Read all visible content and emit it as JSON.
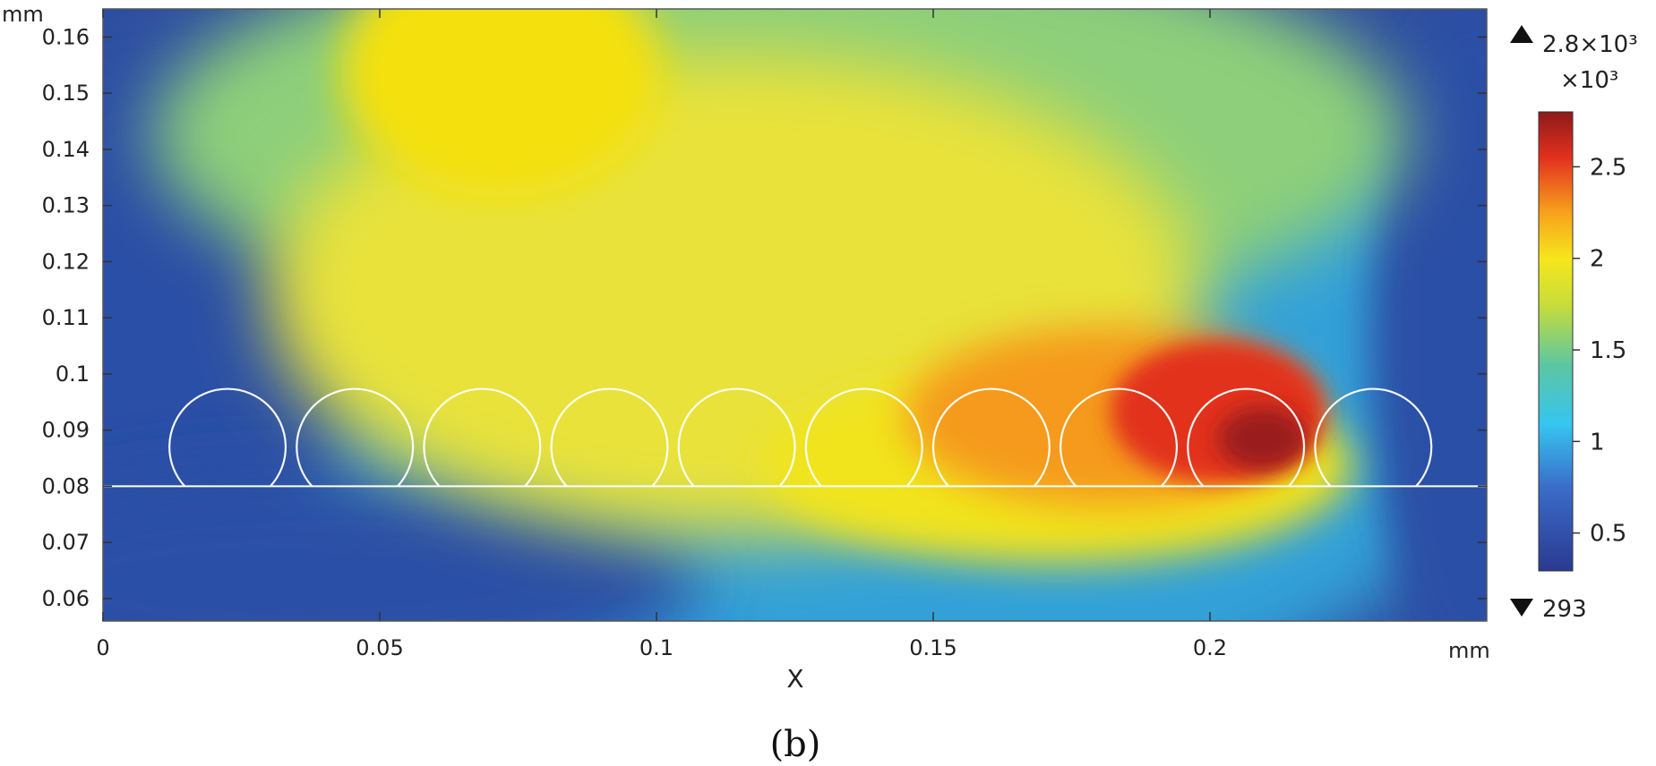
{
  "chart_data": {
    "type": "heatmap",
    "x_unit": "mm",
    "y_unit": "mm",
    "xlabel": "X",
    "xlim": [
      0,
      0.25
    ],
    "ylim": [
      0.056,
      0.165
    ],
    "x_ticks": [
      0,
      0.05,
      0.1,
      0.15,
      0.2
    ],
    "y_ticks": [
      0.06,
      0.07,
      0.08,
      0.09,
      0.1,
      0.11,
      0.12,
      0.13,
      0.14,
      0.15,
      0.16
    ],
    "colorbar": {
      "multiplier": "×10³",
      "max_label": "2.8×10³",
      "min_label": "293",
      "max": 2800,
      "min": 293,
      "tick_values": [
        0.5,
        1,
        1.5,
        2,
        2.5
      ],
      "tick_labels": [
        "0.5",
        "1",
        "1.5",
        "2",
        "2.5"
      ],
      "colormap": "rainbow"
    },
    "substrate_line_y": 0.08,
    "particles": [
      {
        "cx": 0.0225,
        "cy": 0.087,
        "r": 0.0105
      },
      {
        "cx": 0.0455,
        "cy": 0.087,
        "r": 0.0105
      },
      {
        "cx": 0.0685,
        "cy": 0.087,
        "r": 0.0105
      },
      {
        "cx": 0.0915,
        "cy": 0.087,
        "r": 0.0105
      },
      {
        "cx": 0.1145,
        "cy": 0.087,
        "r": 0.0105
      },
      {
        "cx": 0.1375,
        "cy": 0.087,
        "r": 0.0105
      },
      {
        "cx": 0.1605,
        "cy": 0.087,
        "r": 0.0105
      },
      {
        "cx": 0.1835,
        "cy": 0.087,
        "r": 0.0105
      },
      {
        "cx": 0.2065,
        "cy": 0.087,
        "r": 0.0105
      },
      {
        "cx": 0.2295,
        "cy": 0.087,
        "r": 0.0105
      }
    ],
    "field_peak": {
      "x": 0.21,
      "y": 0.086,
      "value": 2800
    }
  },
  "caption": "(b)"
}
